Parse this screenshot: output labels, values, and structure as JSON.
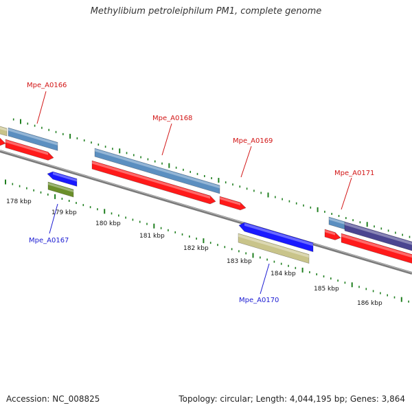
{
  "title": "Methylibium petroleiphilum PM1, complete genome",
  "footer": {
    "accession": "Accession: NC_008825",
    "summary": "Topology: circular; Length: 4,044,195 bp; Genes: 3,864"
  },
  "colors": {
    "backbone": "#8a8a8a",
    "tick": "#1f7f1f",
    "forward_label": "#d21414",
    "reverse_label": "#1a1ad2",
    "cds": "#ff1a1a",
    "steel": "#5b8fc0",
    "khaki": "#c9c48a",
    "olive": "#6b8f2a",
    "blue": "#1a1aff",
    "purple": "#4a4590"
  },
  "scale_labels": [
    "178 kbp",
    "179 kbp",
    "180 kbp",
    "181 kbp",
    "182 kbp",
    "183 kbp",
    "184 kbp",
    "185 kbp",
    "186 kbp"
  ],
  "gene_labels": {
    "forward": [
      "Mpe_A0166",
      "Mpe_A0168",
      "Mpe_A0169",
      "Mpe_A0171"
    ],
    "reverse": [
      "Mpe_A0167",
      "Mpe_A0170"
    ]
  }
}
